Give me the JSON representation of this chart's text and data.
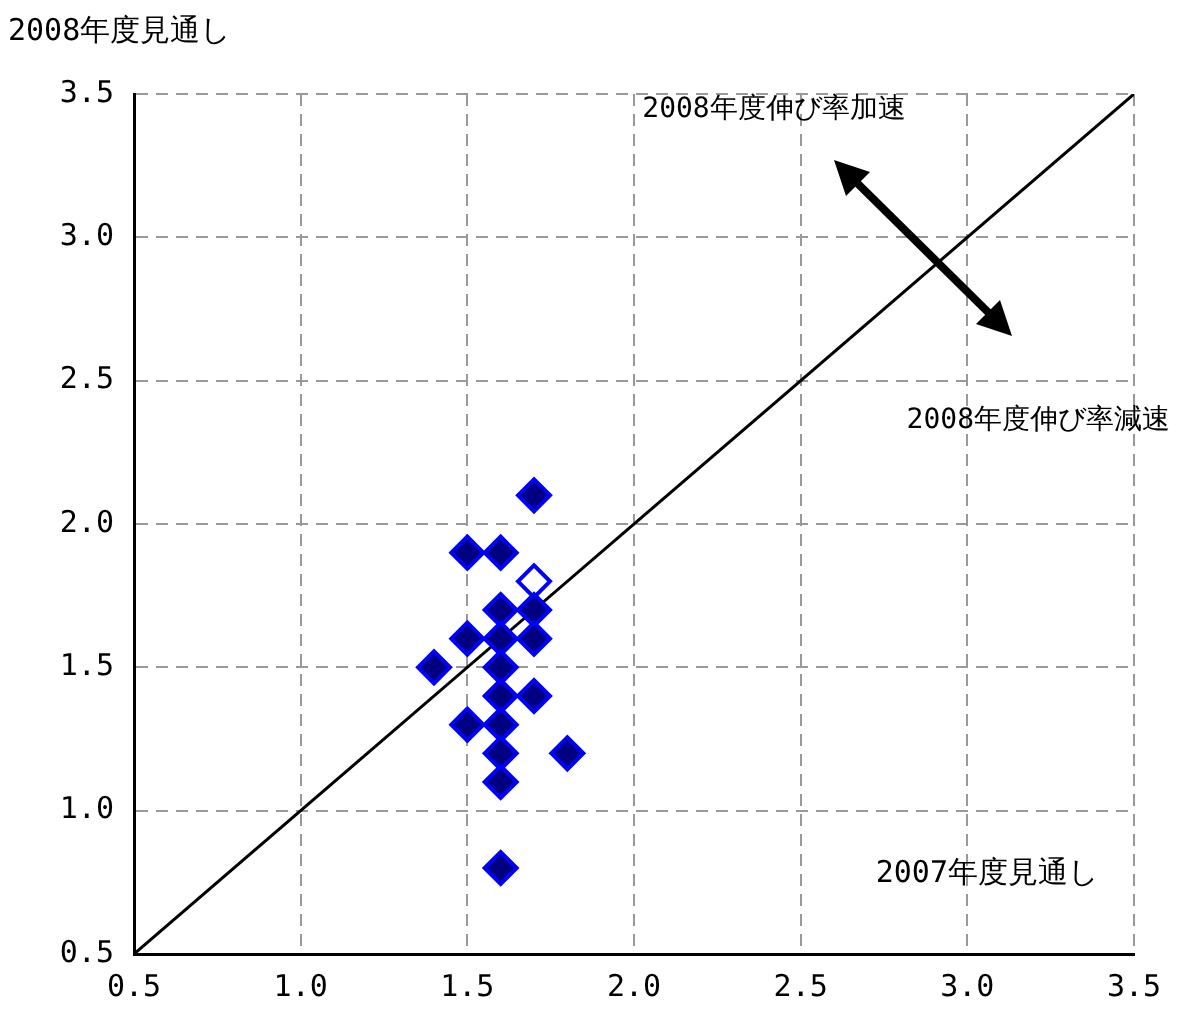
{
  "chart_data": {
    "type": "scatter",
    "xlabel": "2007年度見通し",
    "ylabel": "2008年度見通し",
    "annotations": [
      "2008年度伸び率加速",
      "2008年度伸び率減速"
    ],
    "xlim": [
      0.5,
      3.5
    ],
    "ylim": [
      0.5,
      3.5
    ],
    "xticks": [
      {
        "value": 0.5,
        "label": "0.5"
      },
      {
        "value": 1,
        "label": "1.0"
      },
      {
        "value": 1.5,
        "label": "1.5"
      },
      {
        "value": 2,
        "label": "2.0"
      },
      {
        "value": 2.5,
        "label": "2.5"
      },
      {
        "value": 3,
        "label": "3.0"
      },
      {
        "value": 3.5,
        "label": "3.5"
      }
    ],
    "yticks": [
      {
        "value": 0.5,
        "label": "0.5"
      },
      {
        "value": 1,
        "label": "1.0"
      },
      {
        "value": 1.5,
        "label": "1.5"
      },
      {
        "value": 2,
        "label": "2.0"
      },
      {
        "value": 2.5,
        "label": "2.5"
      },
      {
        "value": 3,
        "label": "3.0"
      },
      {
        "value": 3.5,
        "label": "3.5"
      }
    ],
    "grid": true,
    "legend": false,
    "marker": "diamond",
    "series": [
      {
        "color": "#000080",
        "x": [
          1.7,
          1.5,
          1.6,
          1.6,
          1.7,
          1.5,
          1.6,
          1.7,
          1.4,
          1.6,
          1.6,
          1.7,
          1.5,
          1.6,
          1.6,
          1.8,
          1.6,
          1.6
        ],
        "values": [
          2.1,
          1.9,
          1.9,
          1.7,
          1.7,
          1.6,
          1.6,
          1.6,
          1.5,
          1.5,
          1.4,
          1.4,
          1.3,
          1.3,
          1.2,
          1.2,
          1.1,
          0.8
        ]
      },
      {
        "color": "#0000ff",
        "x": [
          1.7
        ],
        "values": [
          1.8
        ]
      },
      {
        "type": "line",
        "color": "#000000",
        "marker": "none",
        "x": [
          0.5,
          3.5
        ],
        "values": [
          0.5,
          3.5
        ]
      }
    ]
  }
}
